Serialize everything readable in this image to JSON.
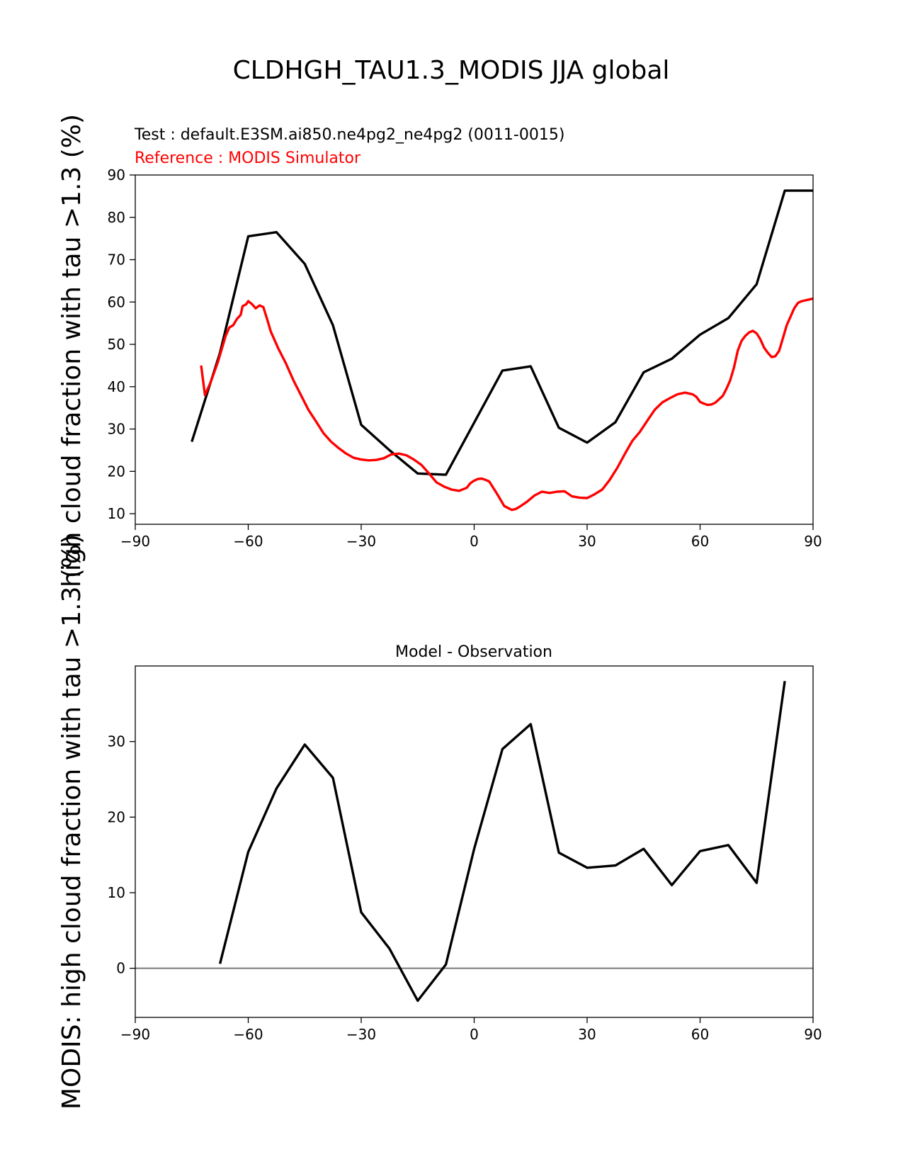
{
  "figure_title": "CLDHGH_TAU1.3_MODIS JJA global",
  "test_label": "Test : default.E3SM.ai850.ne4pg2_ne4pg2 (0011-0015)",
  "reference_label": "Reference : MODIS Simulator",
  "ylabel_top": "high cloud fraction with tau >1.3 (%)",
  "ylabel_bottom": "MODIS: high cloud fraction with tau >1.3 (%)",
  "colors": {
    "test": "#000000",
    "reference": "#ff0000",
    "zero_line": "#808080"
  },
  "chart_data": [
    {
      "type": "line",
      "title": "",
      "xlabel": "",
      "ylabel": "high cloud fraction with tau >1.3 (%)",
      "xlim": [
        -90,
        90
      ],
      "ylim": [
        7.5,
        90
      ],
      "xticks": [
        -90,
        -60,
        -30,
        0,
        30,
        60,
        90
      ],
      "xtick_labels": [
        "−90",
        "−60",
        "−30",
        "0",
        "30",
        "60",
        "90"
      ],
      "yticks": [
        10,
        20,
        30,
        40,
        50,
        60,
        70,
        80,
        90
      ],
      "series": [
        {
          "name": "Test",
          "color": "#000000",
          "x": [
            -75,
            -67.5,
            -60,
            -52.5,
            -45,
            -37.5,
            -30,
            -22.5,
            -15,
            -7.5,
            0,
            7.5,
            15,
            22.5,
            30,
            37.5,
            45,
            52.5,
            60,
            67.5,
            75,
            82.5,
            90
          ],
          "y": [
            27,
            48,
            75.5,
            76.5,
            69,
            54.5,
            31,
            25,
            19.5,
            19.2,
            31.5,
            43.8,
            44.8,
            30.3,
            26.8,
            31.6,
            43.4,
            46.6,
            52.3,
            56.2,
            64.2,
            86.3,
            86.3
          ]
        },
        {
          "name": "Reference",
          "color": "#ff0000",
          "x": [
            -72.5,
            -71.5,
            -70,
            -68,
            -66,
            -65,
            -64,
            -63,
            -62,
            -61.5,
            -60.5,
            -60,
            -59,
            -58,
            -57,
            -56,
            -55,
            -54,
            -52,
            -50,
            -48,
            -46,
            -44,
            -42,
            -40,
            -38,
            -36,
            -34,
            -32,
            -30,
            -28,
            -26,
            -24,
            -22,
            -20,
            -18,
            -16,
            -14,
            -12,
            -10,
            -8,
            -6,
            -4,
            -2,
            -1,
            0,
            1,
            2,
            3,
            4,
            5,
            6,
            8,
            10,
            11,
            12,
            14,
            16,
            18,
            20,
            22,
            24,
            26,
            28,
            30,
            32,
            34,
            36,
            38,
            40,
            42,
            44,
            46,
            48,
            50,
            52,
            54,
            56,
            58,
            59,
            60,
            61,
            62,
            63,
            64,
            65,
            66,
            67,
            68,
            69,
            70,
            71,
            72,
            73,
            74,
            75,
            76,
            77,
            78,
            79,
            80,
            81,
            82,
            83,
            84,
            85,
            86,
            87,
            88,
            89,
            90
          ],
          "y": [
            45,
            38,
            41,
            46,
            52,
            54,
            54.5,
            56,
            57,
            59,
            59.5,
            60.2,
            59.5,
            58.5,
            59.2,
            58.8,
            56,
            53,
            49,
            45.5,
            41.5,
            38,
            34.5,
            31.8,
            29,
            27,
            25.5,
            24.2,
            23.2,
            22.8,
            22.6,
            22.7,
            23.1,
            24,
            24.2,
            23.8,
            22.8,
            21.5,
            19.5,
            17.4,
            16.4,
            15.7,
            15.4,
            16.1,
            17.2,
            17.8,
            18.2,
            18.3,
            18,
            17.6,
            16.2,
            14.8,
            11.8,
            10.9,
            11.1,
            11.6,
            12.8,
            14.3,
            15.2,
            14.9,
            15.2,
            15.3,
            14.1,
            13.8,
            13.7,
            14.6,
            15.7,
            18,
            20.8,
            24.1,
            27.2,
            29.3,
            32,
            34.6,
            36.3,
            37.3,
            38.2,
            38.6,
            38.2,
            37.6,
            36.4,
            36,
            35.7,
            35.8,
            36.2,
            37,
            37.8,
            39.5,
            41.5,
            44.5,
            48.5,
            50.8,
            52,
            52.8,
            53.2,
            52.6,
            51.2,
            49.2,
            48,
            47,
            47.2,
            48.5,
            51.5,
            54.5,
            56.5,
            58.5,
            59.8,
            60.2,
            60.4,
            60.6,
            60.8
          ]
        }
      ]
    },
    {
      "type": "line",
      "title": "Model - Observation",
      "xlabel": "",
      "ylabel": "MODIS: high cloud fraction with tau >1.3 (%)",
      "xlim": [
        -90,
        90
      ],
      "ylim": [
        -6.5,
        40
      ],
      "xticks": [
        -90,
        -60,
        -30,
        0,
        30,
        60,
        90
      ],
      "xtick_labels": [
        "−90",
        "−60",
        "−30",
        "0",
        "30",
        "60",
        "90"
      ],
      "yticks": [
        0,
        10,
        20,
        30
      ],
      "zero_line": 0,
      "series": [
        {
          "name": "Model - Observation",
          "color": "#000000",
          "x": [
            -67.5,
            -60,
            -52.5,
            -45,
            -37.5,
            -30,
            -22.5,
            -15,
            -7.5,
            0,
            7.5,
            15,
            22.5,
            30,
            37.5,
            45,
            52.5,
            60,
            67.5,
            75,
            82.5
          ],
          "y": [
            0.6,
            15.4,
            23.8,
            29.6,
            25.2,
            7.4,
            2.6,
            -4.3,
            0.5,
            15.8,
            29,
            32.3,
            15.3,
            13.3,
            13.6,
            15.8,
            11,
            15.5,
            16.3,
            11.3,
            38
          ]
        }
      ]
    }
  ]
}
